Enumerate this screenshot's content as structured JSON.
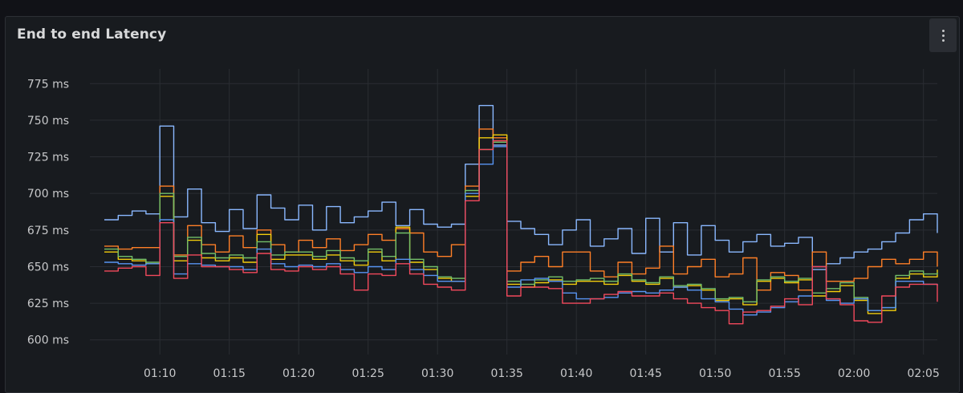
{
  "panel": {
    "title": "End to end Latency"
  },
  "icons": {
    "menu": "kebab-menu-icon"
  },
  "chart_data": {
    "type": "line",
    "title": "End to end Latency",
    "xlabel": "",
    "ylabel": "",
    "unit": "ms",
    "grid": true,
    "legend": "none",
    "ylim": [
      590,
      785
    ],
    "xlim": [
      "01:06",
      "02:06"
    ],
    "y_ticks": [
      "600 ms",
      "625 ms",
      "650 ms",
      "675 ms",
      "700 ms",
      "725 ms",
      "750 ms",
      "775 ms"
    ],
    "x_ticks": [
      "01:10",
      "01:15",
      "01:20",
      "01:25",
      "01:30",
      "01:35",
      "01:40",
      "01:45",
      "01:50",
      "01:55",
      "02:00",
      "02:05"
    ],
    "series": [
      {
        "color": "#8ab8ff",
        "x": [
          "01:06",
          "01:07",
          "01:08",
          "01:09",
          "01:10",
          "01:11",
          "01:12",
          "01:13",
          "01:14",
          "01:15",
          "01:16",
          "01:17",
          "01:18",
          "01:19",
          "01:20",
          "01:21",
          "01:22",
          "01:23",
          "01:24",
          "01:25",
          "01:26",
          "01:27",
          "01:28",
          "01:29",
          "01:30",
          "01:31",
          "01:32",
          "01:33",
          "01:34",
          "01:35",
          "01:36",
          "01:37",
          "01:38",
          "01:39",
          "01:40",
          "01:41",
          "01:42",
          "01:43",
          "01:44",
          "01:45",
          "01:46",
          "01:47",
          "01:48",
          "01:49",
          "01:50",
          "01:51",
          "01:52",
          "01:53",
          "01:54",
          "01:55",
          "01:56",
          "01:57",
          "01:58",
          "01:59",
          "02:00",
          "02:01",
          "02:02",
          "02:03",
          "02:04",
          "02:05",
          "02:06"
        ],
        "y": [
          682,
          685,
          688,
          686,
          746,
          684,
          703,
          680,
          674,
          689,
          676,
          699,
          690,
          682,
          692,
          675,
          691,
          680,
          684,
          688,
          694,
          678,
          689,
          679,
          677,
          679,
          720,
          760,
          733,
          681,
          676,
          672,
          665,
          675,
          682,
          664,
          669,
          676,
          659,
          683,
          660,
          680,
          658,
          678,
          668,
          660,
          667,
          672,
          664,
          666,
          670,
          648,
          652,
          656,
          660,
          662,
          667,
          673,
          682,
          686,
          673
        ]
      },
      {
        "color": "#ff7f27",
        "x": [
          "01:06",
          "01:07",
          "01:08",
          "01:09",
          "01:10",
          "01:11",
          "01:12",
          "01:13",
          "01:14",
          "01:15",
          "01:16",
          "01:17",
          "01:18",
          "01:19",
          "01:20",
          "01:21",
          "01:22",
          "01:23",
          "01:24",
          "01:25",
          "01:26",
          "01:27",
          "01:28",
          "01:29",
          "01:30",
          "01:31",
          "01:32",
          "01:33",
          "01:34",
          "01:35",
          "01:36",
          "01:37",
          "01:38",
          "01:39",
          "01:40",
          "01:41",
          "01:42",
          "01:43",
          "01:44",
          "01:45",
          "01:46",
          "01:47",
          "01:48",
          "01:49",
          "01:50",
          "01:51",
          "01:52",
          "01:53",
          "01:54",
          "01:55",
          "01:56",
          "01:57",
          "01:58",
          "01:59",
          "02:00",
          "02:01",
          "02:02",
          "02:03",
          "02:04",
          "02:05",
          "02:06"
        ],
        "y": [
          664,
          662,
          663,
          663,
          705,
          658,
          678,
          665,
          660,
          671,
          663,
          675,
          665,
          660,
          668,
          663,
          669,
          661,
          665,
          672,
          668,
          676,
          673,
          660,
          657,
          665,
          705,
          744,
          738,
          647,
          653,
          657,
          650,
          660,
          660,
          647,
          643,
          653,
          645,
          649,
          664,
          645,
          650,
          655,
          643,
          645,
          656,
          634,
          646,
          644,
          634,
          660,
          640,
          640,
          642,
          650,
          655,
          652,
          655,
          660,
          650
        ]
      },
      {
        "color": "#f2cc0c",
        "x": [
          "01:06",
          "01:07",
          "01:08",
          "01:09",
          "01:10",
          "01:11",
          "01:12",
          "01:13",
          "01:14",
          "01:15",
          "01:16",
          "01:17",
          "01:18",
          "01:19",
          "01:20",
          "01:21",
          "01:22",
          "01:23",
          "01:24",
          "01:25",
          "01:26",
          "01:27",
          "01:28",
          "01:29",
          "01:30",
          "01:31",
          "01:32",
          "01:33",
          "01:34",
          "01:35",
          "01:36",
          "01:37",
          "01:38",
          "01:39",
          "01:40",
          "01:41",
          "01:42",
          "01:43",
          "01:44",
          "01:45",
          "01:46",
          "01:47",
          "01:48",
          "01:49",
          "01:50",
          "01:51",
          "01:52",
          "01:53",
          "01:54",
          "01:55",
          "01:56",
          "01:57",
          "01:58",
          "01:59",
          "02:00",
          "02:01",
          "02:02",
          "02:03",
          "02:04",
          "02:05",
          "02:06"
        ],
        "y": [
          660,
          655,
          654,
          652,
          698,
          654,
          668,
          656,
          654,
          656,
          653,
          672,
          655,
          658,
          658,
          655,
          658,
          654,
          651,
          660,
          654,
          677,
          653,
          648,
          642,
          640,
          698,
          738,
          740,
          638,
          636,
          639,
          641,
          638,
          640,
          640,
          638,
          644,
          640,
          638,
          642,
          636,
          637,
          634,
          627,
          628,
          624,
          640,
          642,
          639,
          641,
          630,
          633,
          637,
          627,
          618,
          620,
          642,
          645,
          643,
          648
        ]
      },
      {
        "color": "#73bf69",
        "x": [
          "01:06",
          "01:07",
          "01:08",
          "01:09",
          "01:10",
          "01:11",
          "01:12",
          "01:13",
          "01:14",
          "01:15",
          "01:16",
          "01:17",
          "01:18",
          "01:19",
          "01:20",
          "01:21",
          "01:22",
          "01:23",
          "01:24",
          "01:25",
          "01:26",
          "01:27",
          "01:28",
          "01:29",
          "01:30",
          "01:31",
          "01:32",
          "01:33",
          "01:34",
          "01:35",
          "01:36",
          "01:37",
          "01:38",
          "01:39",
          "01:40",
          "01:41",
          "01:42",
          "01:43",
          "01:44",
          "01:45",
          "01:46",
          "01:47",
          "01:48",
          "01:49",
          "01:50",
          "01:51",
          "01:52",
          "01:53",
          "01:54",
          "01:55",
          "01:56",
          "01:57",
          "01:58",
          "01:59",
          "02:00",
          "02:01",
          "02:02",
          "02:03",
          "02:04",
          "02:05",
          "02:06"
        ],
        "y": [
          662,
          657,
          655,
          653,
          700,
          657,
          670,
          659,
          656,
          658,
          656,
          667,
          658,
          660,
          660,
          657,
          661,
          656,
          654,
          662,
          657,
          673,
          655,
          650,
          643,
          642,
          702,
          730,
          735,
          640,
          638,
          641,
          643,
          640,
          641,
          642,
          640,
          645,
          641,
          639,
          643,
          637,
          638,
          635,
          628,
          629,
          626,
          641,
          643,
          640,
          642,
          632,
          635,
          639,
          629,
          620,
          622,
          644,
          647,
          645,
          646
        ]
      },
      {
        "color": "#5794f2",
        "x": [
          "01:06",
          "01:07",
          "01:08",
          "01:09",
          "01:10",
          "01:11",
          "01:12",
          "01:13",
          "01:14",
          "01:15",
          "01:16",
          "01:17",
          "01:18",
          "01:19",
          "01:20",
          "01:21",
          "01:22",
          "01:23",
          "01:24",
          "01:25",
          "01:26",
          "01:27",
          "01:28",
          "01:29",
          "01:30",
          "01:31",
          "01:32",
          "01:33",
          "01:34",
          "01:35",
          "01:36",
          "01:37",
          "01:38",
          "01:39",
          "01:40",
          "01:41",
          "01:42",
          "01:43",
          "01:44",
          "01:45",
          "01:46",
          "01:47",
          "01:48",
          "01:49",
          "01:50",
          "01:51",
          "01:52",
          "01:53",
          "01:54",
          "01:55",
          "01:56",
          "01:57",
          "01:58",
          "01:59",
          "02:00",
          "02:01",
          "02:02",
          "02:03",
          "02:04",
          "02:05",
          "02:06"
        ],
        "y": [
          653,
          652,
          651,
          652,
          682,
          645,
          652,
          651,
          650,
          650,
          648,
          662,
          652,
          650,
          651,
          650,
          652,
          648,
          646,
          650,
          648,
          655,
          648,
          644,
          640,
          640,
          700,
          720,
          732,
          636,
          641,
          642,
          640,
          632,
          628,
          628,
          629,
          632,
          633,
          632,
          634,
          636,
          634,
          628,
          626,
          621,
          617,
          619,
          622,
          626,
          630,
          650,
          627,
          625,
          628,
          620,
          622,
          640,
          640,
          638,
          637
        ]
      },
      {
        "color": "#f2495c",
        "x": [
          "01:06",
          "01:07",
          "01:08",
          "01:09",
          "01:10",
          "01:11",
          "01:12",
          "01:13",
          "01:14",
          "01:15",
          "01:16",
          "01:17",
          "01:18",
          "01:19",
          "01:20",
          "01:21",
          "01:22",
          "01:23",
          "01:24",
          "01:25",
          "01:26",
          "01:27",
          "01:28",
          "01:29",
          "01:30",
          "01:31",
          "01:32",
          "01:33",
          "01:34",
          "01:35",
          "01:36",
          "01:37",
          "01:38",
          "01:39",
          "01:40",
          "01:41",
          "01:42",
          "01:43",
          "01:44",
          "01:45",
          "01:46",
          "01:47",
          "01:48",
          "01:49",
          "01:50",
          "01:51",
          "01:52",
          "01:53",
          "01:54",
          "01:55",
          "01:56",
          "01:57",
          "01:58",
          "01:59",
          "02:00",
          "02:01",
          "02:02",
          "02:03",
          "02:04",
          "02:05",
          "02:06"
        ],
        "y": [
          647,
          649,
          650,
          644,
          680,
          642,
          658,
          650,
          650,
          648,
          646,
          659,
          648,
          647,
          650,
          648,
          650,
          645,
          634,
          645,
          644,
          652,
          645,
          638,
          636,
          634,
          695,
          730,
          736,
          630,
          636,
          636,
          635,
          625,
          625,
          628,
          631,
          633,
          630,
          630,
          632,
          628,
          625,
          622,
          620,
          611,
          619,
          620,
          623,
          628,
          624,
          650,
          628,
          624,
          613,
          612,
          630,
          636,
          638,
          638,
          626
        ]
      }
    ]
  }
}
